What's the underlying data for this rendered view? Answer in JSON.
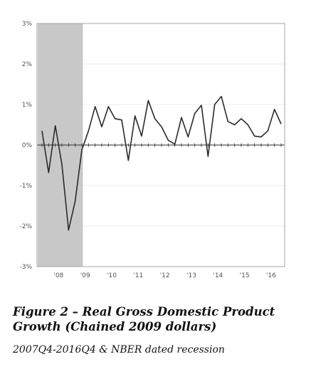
{
  "chart_data": {
    "type": "line",
    "ylim": [
      -3,
      3
    ],
    "yticks": [
      -3,
      -2,
      -1,
      0,
      1,
      2,
      3
    ],
    "ytick_labels": [
      "-3%",
      "-2%",
      "-1%",
      "0%",
      "1%",
      "2%",
      "3%"
    ],
    "x_start": "2007Q4",
    "x_end": "2016Q4",
    "xtick_labels": [
      "'08",
      "'09",
      "'10",
      "'11",
      "'12",
      "'13",
      "'14",
      "'15",
      "'16"
    ],
    "xtick_years": [
      2008,
      2009,
      2010,
      2011,
      2012,
      2013,
      2014,
      2015,
      2016
    ],
    "recession": {
      "start": "2007Q4",
      "end": "2009Q2"
    },
    "series": [
      {
        "quarters": [
          "2007Q4",
          "2008Q1",
          "2008Q2",
          "2008Q3",
          "2008Q4",
          "2009Q1",
          "2009Q2",
          "2009Q3",
          "2009Q4",
          "2010Q1",
          "2010Q2",
          "2010Q3",
          "2010Q4",
          "2011Q1",
          "2011Q2",
          "2011Q3",
          "2011Q4",
          "2012Q1",
          "2012Q2",
          "2012Q3",
          "2012Q4",
          "2013Q1",
          "2013Q2",
          "2013Q3",
          "2013Q4",
          "2014Q1",
          "2014Q2",
          "2014Q3",
          "2014Q4",
          "2015Q1",
          "2015Q2",
          "2015Q3",
          "2015Q4",
          "2016Q1",
          "2016Q2",
          "2016Q3",
          "2016Q4"
        ],
        "values": [
          0.35,
          -0.68,
          0.48,
          -0.48,
          -2.1,
          -1.38,
          -0.12,
          0.35,
          0.95,
          0.45,
          0.95,
          0.65,
          0.62,
          -0.38,
          0.72,
          0.22,
          1.1,
          0.65,
          0.45,
          0.12,
          0.02,
          0.68,
          0.2,
          0.78,
          0.98,
          -0.28,
          1.0,
          1.2,
          0.58,
          0.5,
          0.65,
          0.5,
          0.22,
          0.2,
          0.35,
          0.88,
          0.52
        ]
      }
    ]
  },
  "caption": {
    "title": "Figure 2 – Real Gross Domestic Product Growth (Chained 2009 dollars)",
    "subtitle": "2007Q4-2016Q4 & NBER dated recession"
  },
  "colors": {
    "line": "#2b2b2b",
    "recession": "#c8c8c8",
    "frame": "#a6a6a6",
    "grid": "#e6e6e6"
  }
}
